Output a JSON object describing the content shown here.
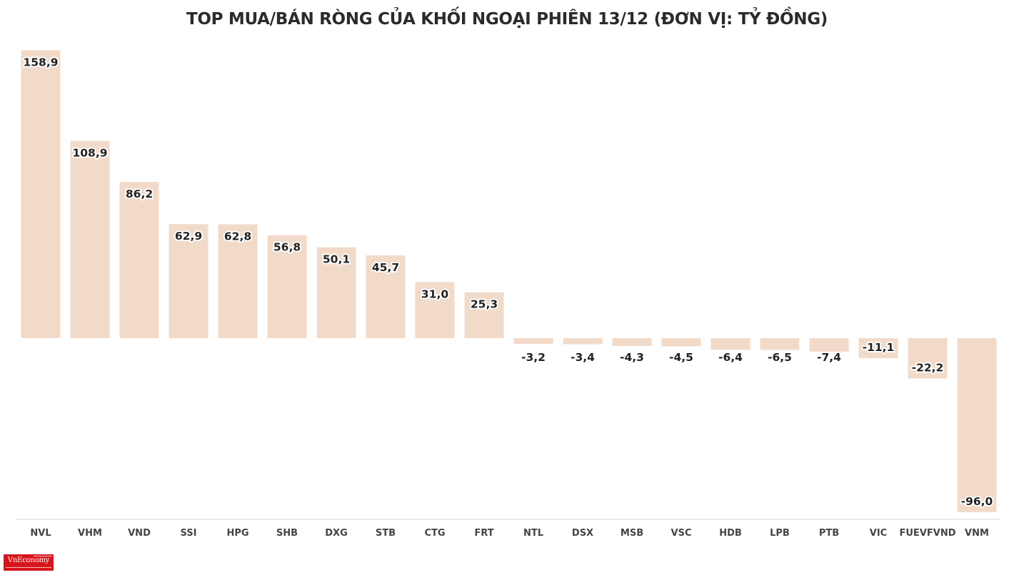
{
  "brand": {
    "name": "VnEconomy",
    "color": "#d7151c"
  },
  "colors": {
    "bar": "#f2dac9",
    "axis": "#d5d5d5",
    "label": "#222222"
  },
  "chart_data": {
    "type": "bar",
    "title": "TOP MUA/BÁN RÒNG CỦA KHỐI NGOẠI PHIÊN 13/12 (ĐƠN VỊ: TỶ ĐỒNG)",
    "xlabel": "",
    "ylabel": "",
    "grid": false,
    "ylim": [
      -100,
      160
    ],
    "categories": [
      "NVL",
      "VHM",
      "VND",
      "SSI",
      "HPG",
      "SHB",
      "DXG",
      "STB",
      "CTG",
      "FRT",
      "NTL",
      "DSX",
      "MSB",
      "VSC",
      "HDB",
      "LPB",
      "PTB",
      "VIC",
      "FUEVFVND",
      "VNM"
    ],
    "values": [
      158.9,
      108.9,
      86.2,
      62.9,
      62.8,
      56.8,
      50.1,
      45.7,
      31.0,
      25.3,
      -3.2,
      -3.4,
      -4.3,
      -4.5,
      -6.4,
      -6.5,
      -7.4,
      -11.1,
      -22.2,
      -96.0
    ],
    "value_labels": [
      "158,9",
      "108,9",
      "86,2",
      "62,9",
      "62,8",
      "56,8",
      "50,1",
      "45,7",
      "31,0",
      "25,3",
      "-3,2",
      "-3,4",
      "-4,3",
      "-4,5",
      "-6,4",
      "-6,5",
      "-7,4",
      "-11,1",
      "-22,2",
      "-96,0"
    ]
  }
}
